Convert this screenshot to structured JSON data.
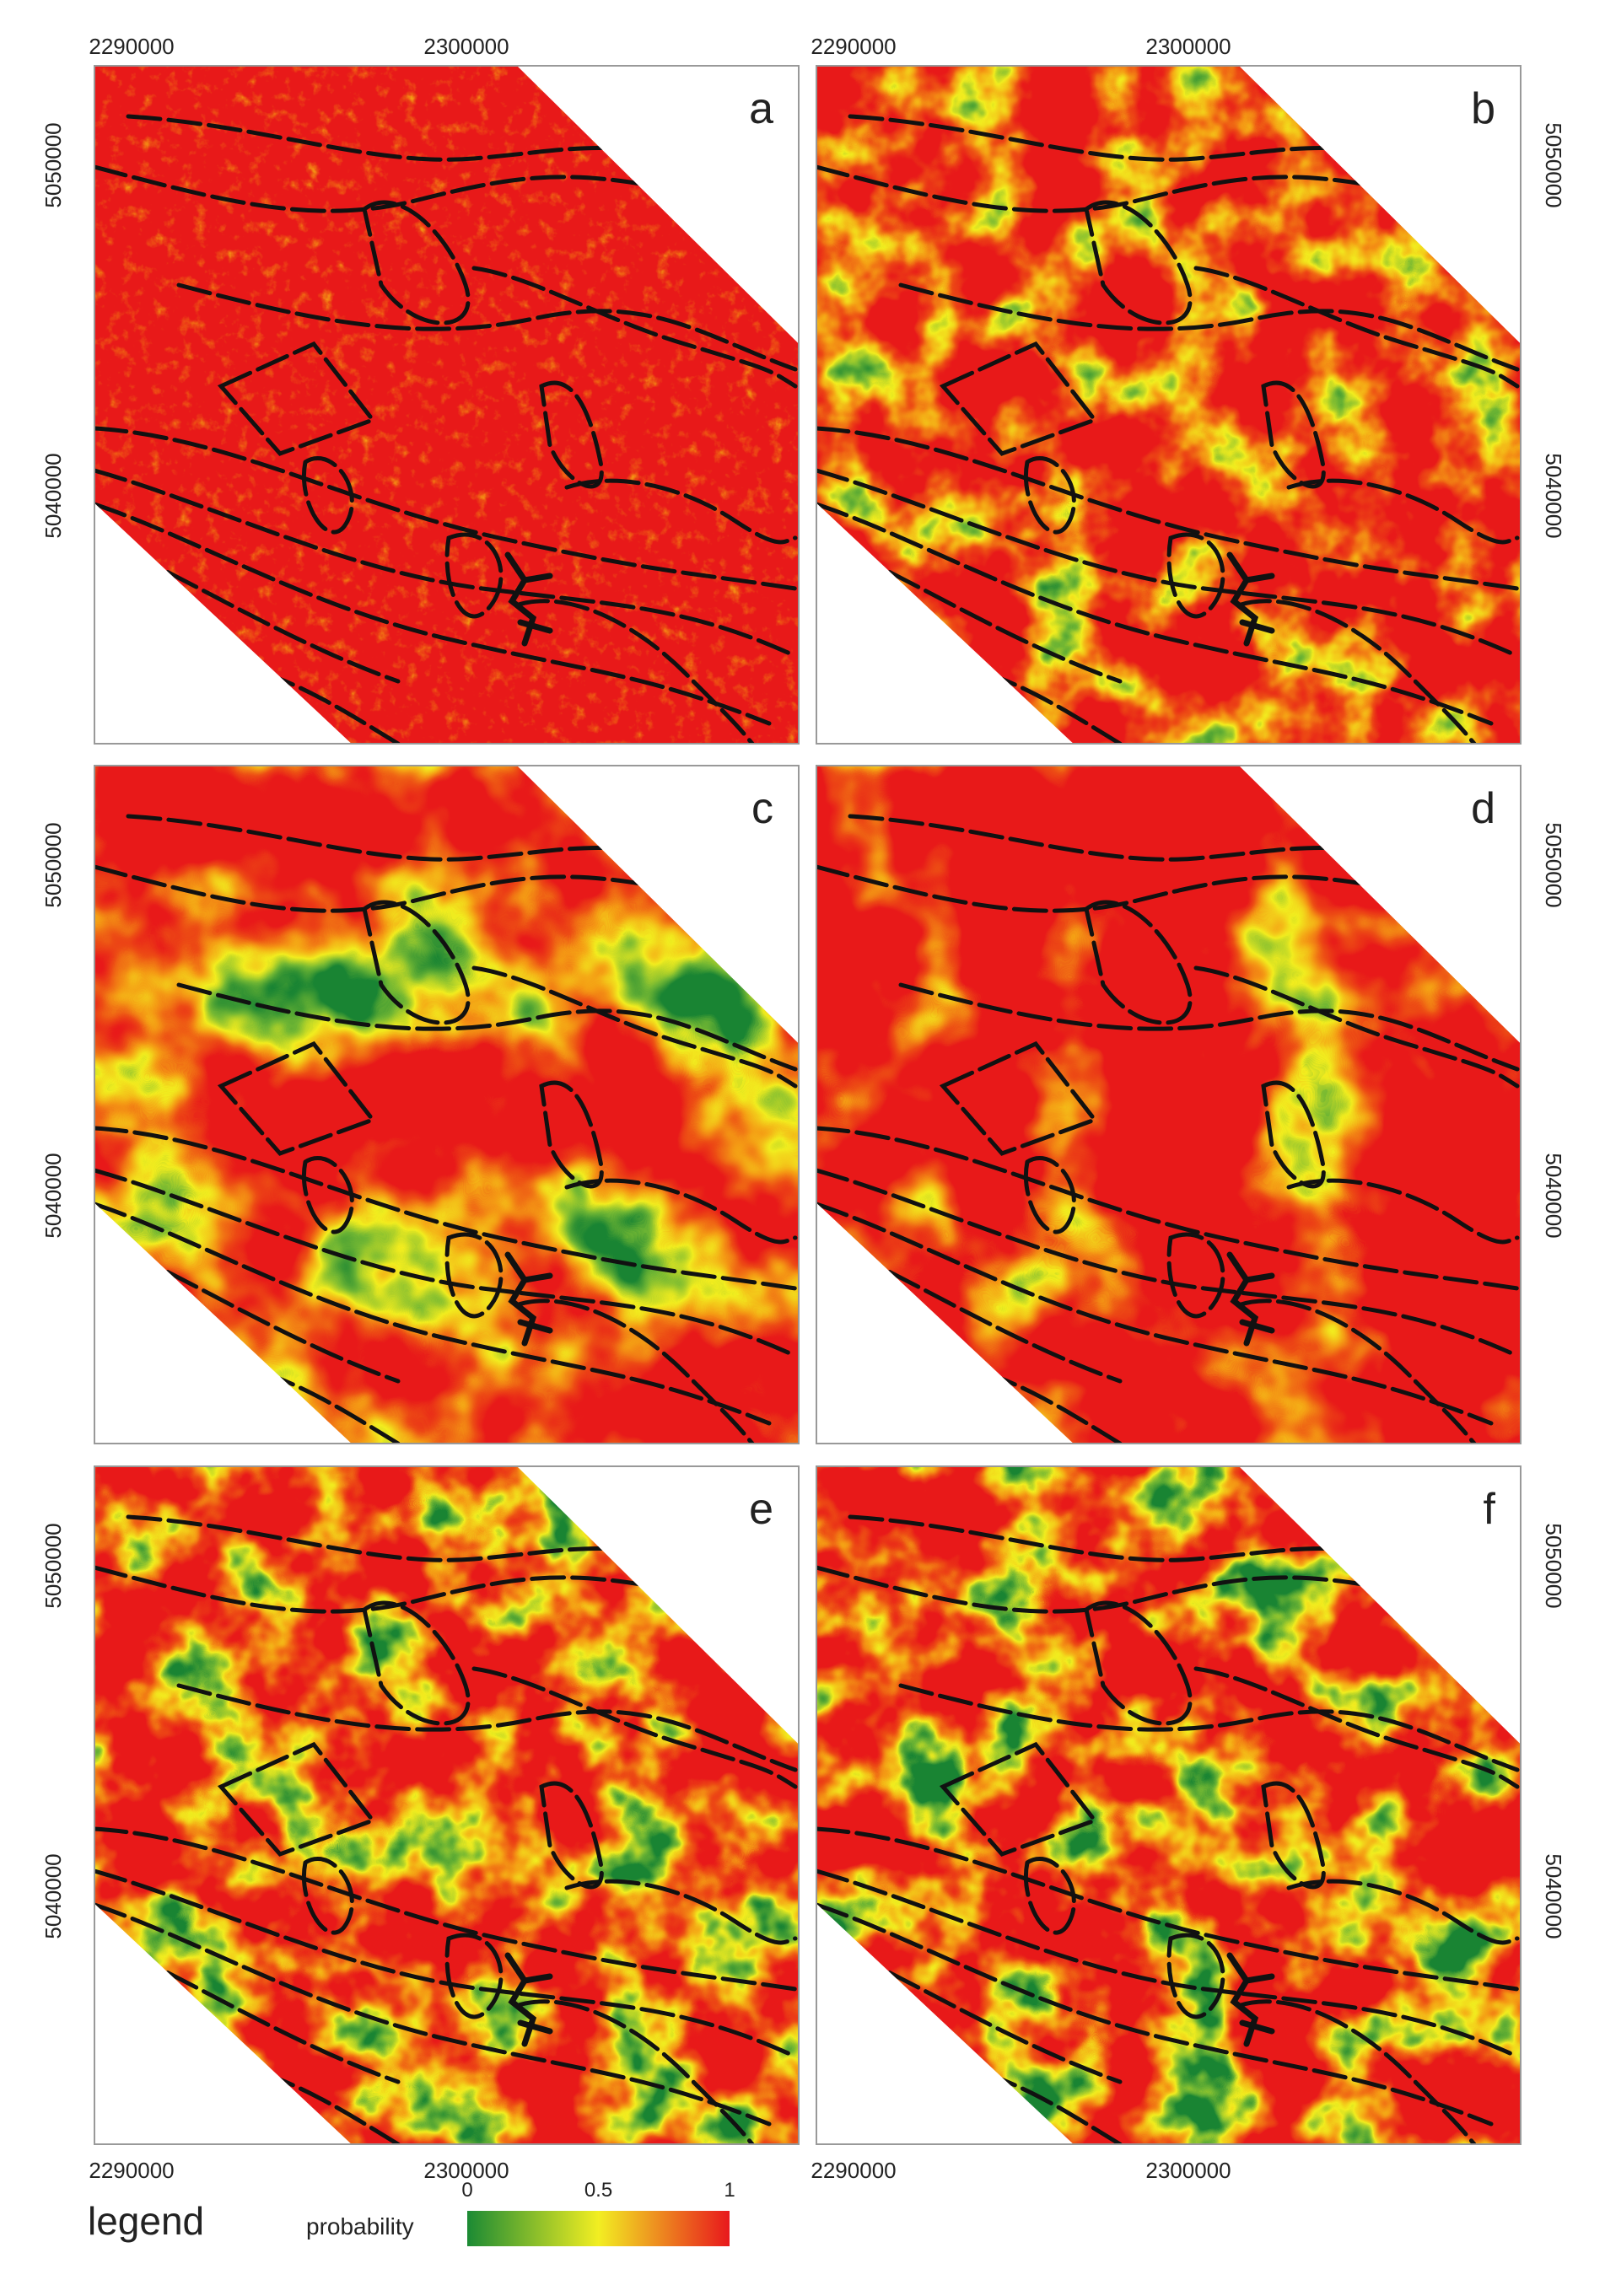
{
  "panels": [
    {
      "label": "a"
    },
    {
      "label": "b"
    },
    {
      "label": "c"
    },
    {
      "label": "d"
    },
    {
      "label": "e"
    },
    {
      "label": "f"
    }
  ],
  "x_ticks": [
    "2290000",
    "2300000"
  ],
  "y_ticks": [
    "5050000",
    "5040000"
  ],
  "legend": {
    "title": "legend",
    "label": "probability",
    "stops": [
      {
        "label": "0",
        "color": "#1b8a34"
      },
      {
        "label": "0.5",
        "color": "#f2ee22"
      },
      {
        "label": "1",
        "color": "#e8181c"
      }
    ]
  }
}
